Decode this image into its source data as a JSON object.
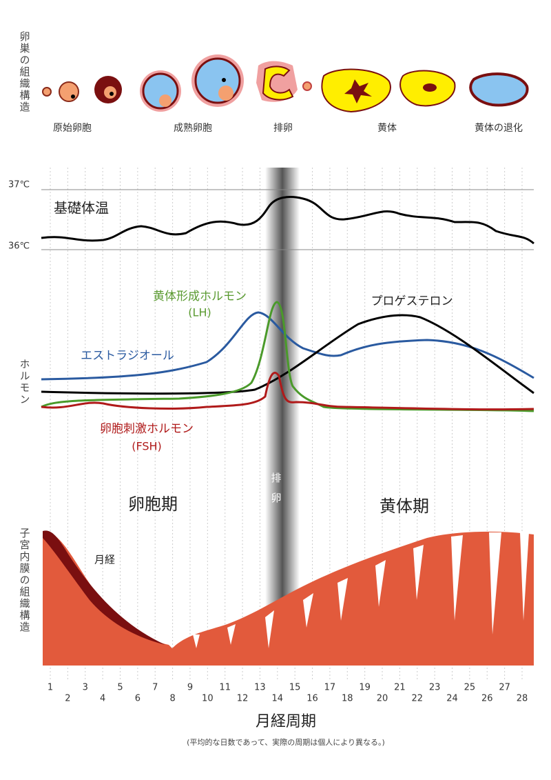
{
  "ovary": {
    "label": "卵巣の組織構造",
    "stages": [
      "原始卵胞",
      "成熟卵胞",
      "排卵",
      "黄体",
      "黄体の退化"
    ]
  },
  "temperature": {
    "label": "基礎体温",
    "ticks": [
      "37℃",
      "36℃"
    ]
  },
  "hormones": {
    "label": "ホルモン",
    "lh": [
      "黄体形成ホルモン",
      "(LH)"
    ],
    "estradiol": "エストラジオール",
    "progesterone": "プロゲステロン",
    "fsh": [
      "卵胞刺激ホルモン",
      "(FSH)"
    ]
  },
  "ovulation": "排卵",
  "phases": [
    "卵胞期",
    "黄体期"
  ],
  "endometrium": {
    "label": "子宮内膜の組織構造",
    "menstruation": "月経"
  },
  "days": [
    1,
    2,
    3,
    4,
    5,
    6,
    7,
    8,
    9,
    10,
    11,
    12,
    13,
    14,
    15,
    16,
    17,
    18,
    19,
    20,
    21,
    22,
    23,
    24,
    25,
    26,
    27,
    28
  ],
  "x_label": "月経周期",
  "note": "(平均的な日数であって、実際の周期は個人により異なる。)"
}
